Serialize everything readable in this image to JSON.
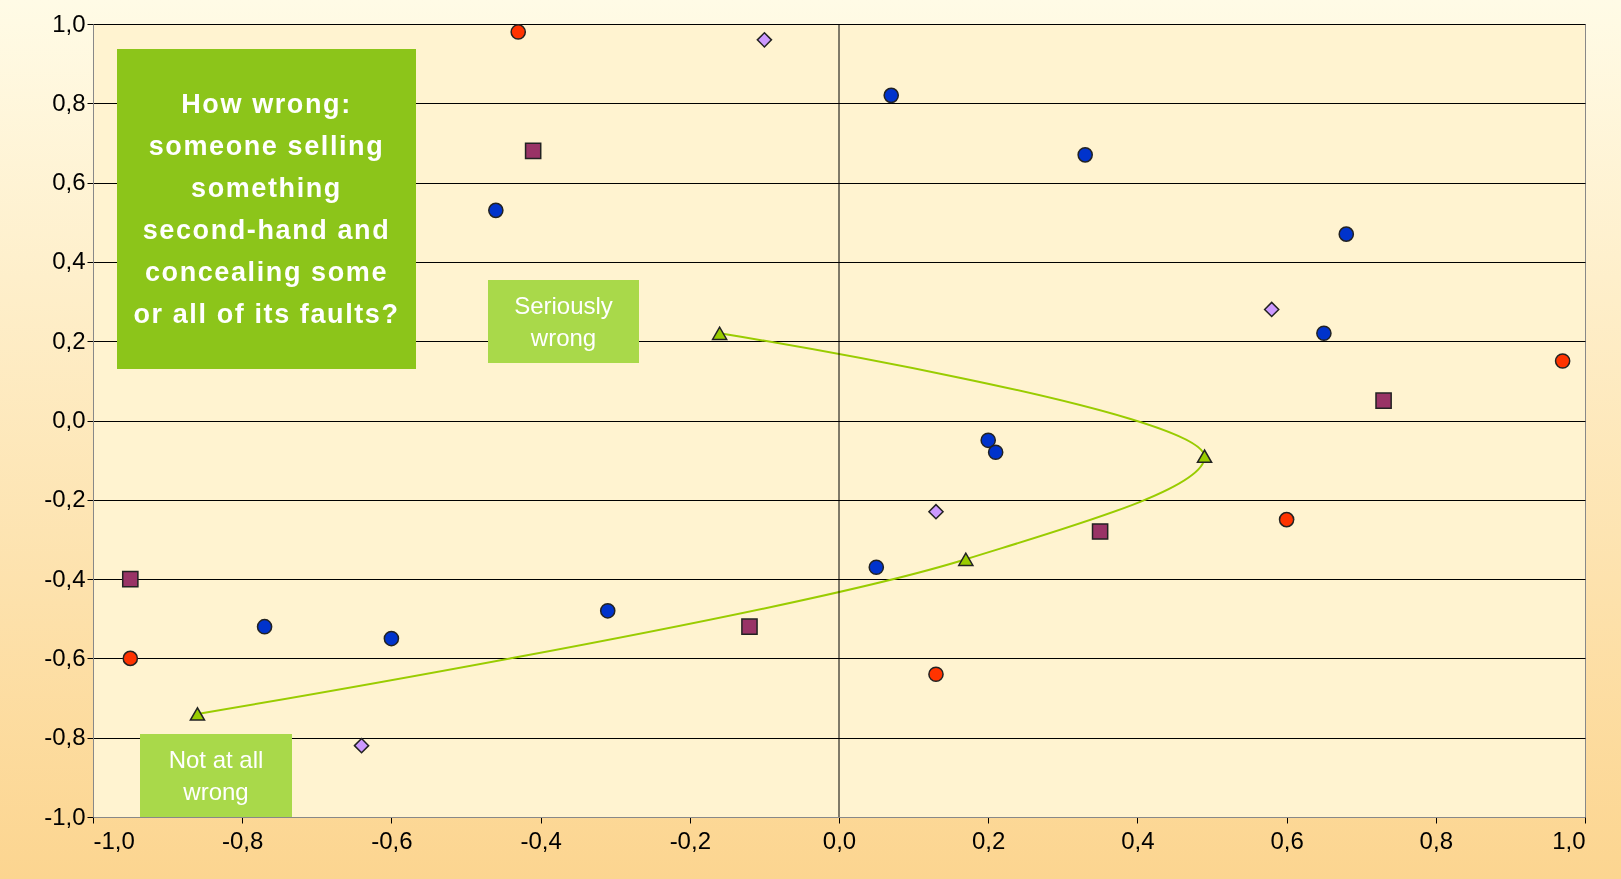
{
  "chart_data": {
    "type": "scatter",
    "title": "How wrong: someone selling something second-hand and concealing some or all of its faults?",
    "annotations": [
      "Seriously wrong",
      "Not at all wrong"
    ],
    "xlim": [
      -1,
      1
    ],
    "ylim": [
      -1,
      1
    ],
    "xticks": [
      {
        "value": -1,
        "label": "-1,0"
      },
      {
        "value": -0.8,
        "label": "-0,8"
      },
      {
        "value": -0.6,
        "label": "-0,6"
      },
      {
        "value": -0.4,
        "label": "-0,4"
      },
      {
        "value": -0.2,
        "label": "-0,2"
      },
      {
        "value": 0,
        "label": "0,0"
      },
      {
        "value": 0.2,
        "label": "0,2"
      },
      {
        "value": 0.4,
        "label": "0,4"
      },
      {
        "value": 0.6,
        "label": "0,6"
      },
      {
        "value": 0.8,
        "label": "0,8"
      },
      {
        "value": 1,
        "label": "1,0"
      }
    ],
    "yticks": [
      {
        "value": -1,
        "label": "-1,0"
      },
      {
        "value": -0.8,
        "label": "-0,8"
      },
      {
        "value": -0.6,
        "label": "-0,6"
      },
      {
        "value": -0.4,
        "label": "-0,4"
      },
      {
        "value": -0.2,
        "label": "-0,2"
      },
      {
        "value": 0,
        "label": "0,0"
      },
      {
        "value": 0.2,
        "label": "0,2"
      },
      {
        "value": 0.4,
        "label": "0,4"
      },
      {
        "value": 0.6,
        "label": "0,6"
      },
      {
        "value": 0.8,
        "label": "0,8"
      },
      {
        "value": 1,
        "label": "1,0"
      }
    ],
    "grid": "y",
    "ref_lines": [
      {
        "axis": "x",
        "value": 0,
        "color": "#000000"
      }
    ],
    "series": [
      {
        "type": "scatter",
        "marker": "circle",
        "color": "#ff3300",
        "x": [
          -0.43,
          0.97,
          0.6,
          -0.95,
          0.13
        ],
        "values": [
          0.98,
          0.15,
          -0.25,
          -0.6,
          -0.64
        ]
      },
      {
        "type": "scatter",
        "marker": "circle",
        "color": "#0033cc",
        "x": [
          0.07,
          0.33,
          0.68,
          0.65,
          -0.46,
          0.2,
          0.21,
          0.05,
          -0.31,
          -0.77,
          -0.6
        ],
        "values": [
          0.82,
          0.67,
          0.47,
          0.22,
          0.53,
          -0.05,
          -0.08,
          -0.37,
          -0.48,
          -0.52,
          -0.55
        ]
      },
      {
        "type": "scatter",
        "marker": "square",
        "color": "#993366",
        "x": [
          -0.41,
          0.73,
          0.35,
          -0.95,
          -0.12
        ],
        "values": [
          0.68,
          0.05,
          -0.28,
          -0.4,
          -0.52
        ]
      },
      {
        "type": "scatter",
        "marker": "diamond",
        "color": "#cc99ff",
        "x": [
          -0.1,
          0.58,
          0.13,
          -0.64
        ],
        "values": [
          0.96,
          0.28,
          -0.23,
          -0.82
        ]
      },
      {
        "type": "line",
        "marker": "triangle",
        "color": "#99cc00",
        "x": [
          -0.86,
          0.17,
          0.49,
          -0.16
        ],
        "values": [
          -0.74,
          -0.35,
          -0.09,
          0.22
        ]
      }
    ]
  }
}
